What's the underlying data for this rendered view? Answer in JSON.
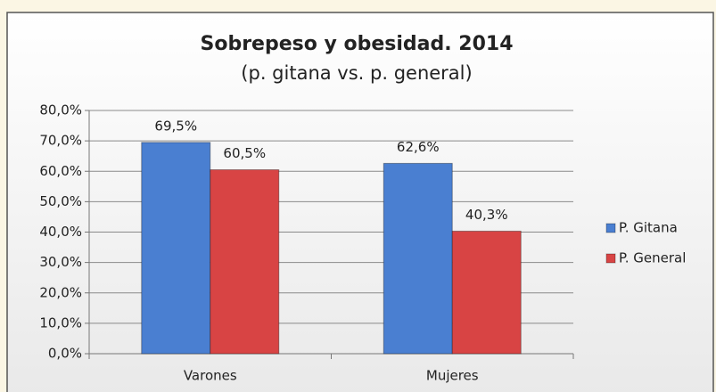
{
  "chart_data": {
    "type": "bar",
    "title": "Sobrepeso y obesidad. 2014",
    "subtitle": "(p. gitana vs. p. general)",
    "categories": [
      "Varones",
      "Mujeres"
    ],
    "series": [
      {
        "name": "P. Gitana",
        "color": "#4a7fd1",
        "values": [
          69.5,
          62.6
        ],
        "value_labels": [
          "69,5%",
          "62,6%"
        ]
      },
      {
        "name": "P. General",
        "color": "#d84444",
        "values": [
          60.5,
          40.3
        ],
        "value_labels": [
          "60,5%",
          "40,3%"
        ]
      }
    ],
    "ylim": [
      0,
      80
    ],
    "yticks": [
      {
        "value": 0,
        "label": "0,0%"
      },
      {
        "value": 10,
        "label": "10,0%"
      },
      {
        "value": 20,
        "label": "20,0%"
      },
      {
        "value": 30,
        "label": "30,0%"
      },
      {
        "value": 40,
        "label": "40,0%"
      },
      {
        "value": 50,
        "label": "50,0%"
      },
      {
        "value": 60,
        "label": "60,0%"
      },
      {
        "value": 70,
        "label": "70,0%"
      },
      {
        "value": 80,
        "label": "80,0%"
      }
    ],
    "grid": true,
    "legend": "right"
  }
}
